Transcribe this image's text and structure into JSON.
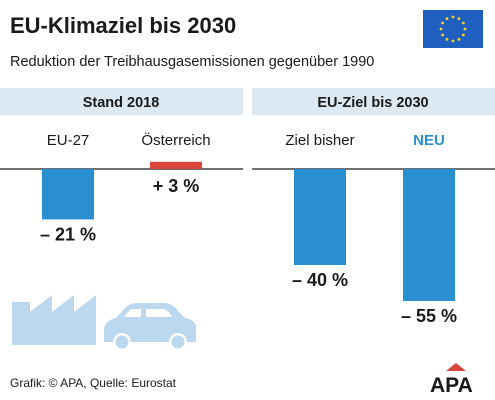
{
  "title": "EU-Klimaziel bis 2030",
  "subtitle": "Reduktion der Treibhausgasemissionen gegenüber 1990",
  "source": "Grafik: © APA, Quelle: Eurostat",
  "logo": "APA",
  "colors": {
    "bar_blue": "#2a8fd0",
    "bar_red": "#d9453a",
    "header_bg": "#dce9f3",
    "label_blue": "#2a8fd0",
    "icon_blue": "#bcd8ee",
    "eu_flag": "#1f5fbf",
    "eu_stars": "#ffd21f"
  },
  "chart_data": [
    {
      "type": "bar",
      "panel_title": "Stand 2018",
      "categories": [
        "EU-27",
        "Österreich"
      ],
      "values": [
        -21,
        3
      ],
      "value_labels": [
        "– 21 %",
        "+ 3 %"
      ],
      "bar_colors": [
        "#2a8fd0",
        "#d9453a"
      ]
    },
    {
      "type": "bar",
      "panel_title": "EU-Ziel bis 2030",
      "categories": [
        "Ziel bisher",
        "NEU"
      ],
      "values": [
        -40,
        -55
      ],
      "value_labels": [
        "– 40 %",
        "– 55 %"
      ],
      "bar_colors": [
        "#2a8fd0",
        "#2a8fd0"
      ],
      "highlight_category": "NEU"
    }
  ]
}
